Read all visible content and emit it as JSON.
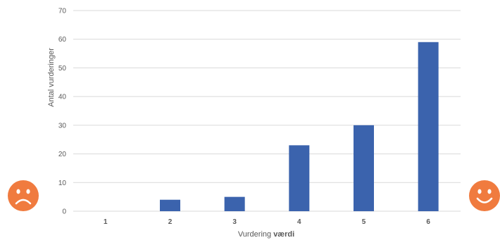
{
  "chart_data": {
    "type": "bar",
    "categories": [
      "1",
      "2",
      "3",
      "4",
      "5",
      "6"
    ],
    "values": [
      0,
      4,
      5,
      23,
      30,
      59
    ],
    "ylim": [
      0,
      70
    ],
    "yticks": [
      0,
      10,
      20,
      30,
      40,
      50,
      60,
      70
    ],
    "ylabel": "Antal vurderinger",
    "xlabel_prefix": "Vurdering ",
    "xlabel_bold": "værdi",
    "grid": true,
    "legend": "none",
    "bar_color": "#3b63ad",
    "grid_color": "#d9d9d9",
    "axis_text_color": "#595959"
  },
  "decorations": {
    "left_icon": "sad-face-icon",
    "right_icon": "happy-face-icon",
    "icon_color": "#f07b3f"
  }
}
